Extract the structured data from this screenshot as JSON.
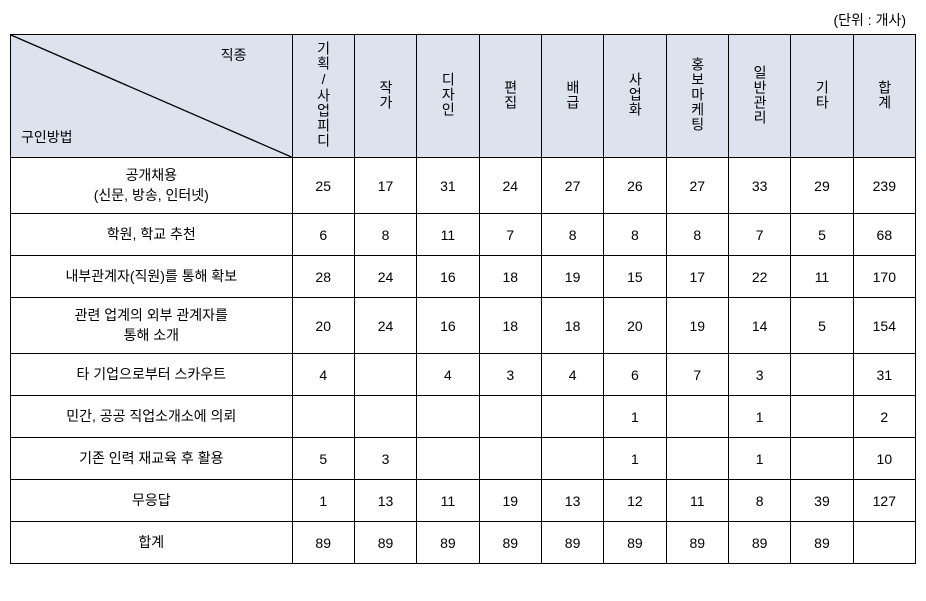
{
  "unit_label": "(단위 : 개사)",
  "corner": {
    "top": "직종",
    "bottom": "구인방법"
  },
  "columns": [
    "기획/사업피디",
    "작가",
    "디자인",
    "편집",
    "배급",
    "사업화",
    "홍보마케팅",
    "일반관리",
    "기타",
    "합계"
  ],
  "rows": [
    {
      "label": "공개채용\n(신문, 방송, 인터넷)",
      "values": [
        "25",
        "17",
        "31",
        "24",
        "27",
        "26",
        "27",
        "33",
        "29",
        "239"
      ],
      "tall": true
    },
    {
      "label": "학원, 학교 추천",
      "values": [
        "6",
        "8",
        "11",
        "7",
        "8",
        "8",
        "8",
        "7",
        "5",
        "68"
      ]
    },
    {
      "label": "내부관계자(직원)를 통해 확보",
      "values": [
        "28",
        "24",
        "16",
        "18",
        "19",
        "15",
        "17",
        "22",
        "11",
        "170"
      ]
    },
    {
      "label": "관련 업계의 외부 관계자를\n통해 소개",
      "values": [
        "20",
        "24",
        "16",
        "18",
        "18",
        "20",
        "19",
        "14",
        "5",
        "154"
      ],
      "tall": true
    },
    {
      "label": "타 기업으로부터 스카우트",
      "values": [
        "4",
        "",
        "4",
        "3",
        "4",
        "6",
        "7",
        "3",
        "",
        "31"
      ]
    },
    {
      "label": "민간, 공공 직업소개소에 의뢰",
      "values": [
        "",
        "",
        "",
        "",
        "",
        "1",
        "",
        "1",
        "",
        "2"
      ]
    },
    {
      "label": "기존 인력 재교육 후 활용",
      "values": [
        "5",
        "3",
        "",
        "",
        "",
        "1",
        "",
        "1",
        "",
        "10"
      ]
    },
    {
      "label": "무응답",
      "values": [
        "1",
        "13",
        "11",
        "19",
        "13",
        "12",
        "11",
        "8",
        "39",
        "127"
      ]
    },
    {
      "label": "합계",
      "values": [
        "89",
        "89",
        "89",
        "89",
        "89",
        "89",
        "89",
        "89",
        "89",
        ""
      ]
    }
  ],
  "styles": {
    "header_bg": "#dce3ef",
    "border_color": "#000000",
    "background": "#ffffff",
    "font_size": 14
  }
}
